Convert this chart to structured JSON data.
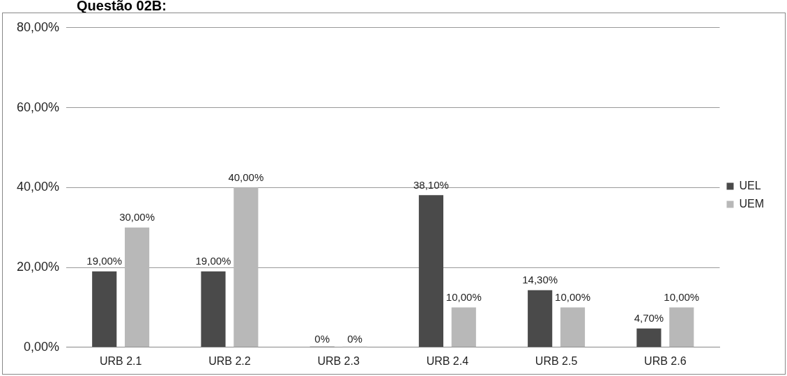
{
  "chart_data": {
    "type": "bar",
    "title": "Questão 02B:",
    "categories": [
      "URB 2.1",
      "URB 2.2",
      "URB 2.3",
      "URB 2.4",
      "URB 2.5",
      "URB 2.6"
    ],
    "series": [
      {
        "name": "UEL",
        "color": "#4a4a4a",
        "values": [
          19,
          19,
          0,
          38.1,
          14.3,
          4.7
        ],
        "value_labels": [
          "19,00%",
          "19,00%",
          "0%",
          "38,10%",
          "14,30%",
          "4,70%"
        ]
      },
      {
        "name": "UEM",
        "color": "#b8b8b8",
        "values": [
          30,
          40,
          0,
          10,
          10,
          10
        ],
        "value_labels": [
          "30,00%",
          "40,00%",
          "0%",
          "10,00%",
          "10,00%",
          "10,00%"
        ]
      }
    ],
    "ylim": [
      0,
      80
    ],
    "yticks": [
      {
        "value": 0,
        "label": "0,00%"
      },
      {
        "value": 20,
        "label": "20,00%"
      },
      {
        "value": 40,
        "label": "40,00%"
      },
      {
        "value": 60,
        "label": "60,00%"
      },
      {
        "value": 80,
        "label": "80,00%"
      }
    ],
    "grid": "y",
    "legend": "right"
  }
}
